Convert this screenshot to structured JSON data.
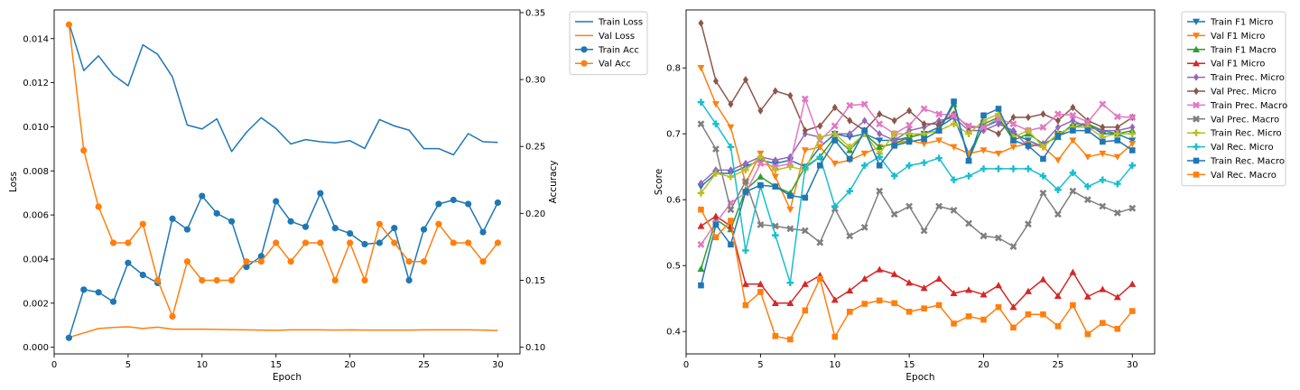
{
  "chart_data": [
    {
      "type": "line",
      "title": "",
      "xlabel": "Epoch",
      "ylabel": "Loss",
      "y2label": "Accuracy",
      "xlim": [
        0,
        31.5
      ],
      "ylim": [
        -0.0003,
        0.0153
      ],
      "y2lim": [
        0.095,
        0.352
      ],
      "xticks": [
        "0",
        "5",
        "10",
        "15",
        "20",
        "25",
        "30"
      ],
      "yticks": [
        "0.000",
        "0.002",
        "0.004",
        "0.006",
        "0.008",
        "0.010",
        "0.012",
        "0.014"
      ],
      "y2ticks": [
        "0.10",
        "0.15",
        "0.20",
        "0.25",
        "0.30",
        "0.35"
      ],
      "grid": false,
      "legend_position": "outside-top-right",
      "x": [
        1,
        2,
        3,
        4,
        5,
        6,
        7,
        8,
        9,
        10,
        11,
        12,
        13,
        14,
        15,
        16,
        17,
        18,
        19,
        20,
        21,
        22,
        23,
        24,
        25,
        26,
        27,
        28,
        29,
        30
      ],
      "series": [
        {
          "name": "Train Loss",
          "axis": "left",
          "marker": "none",
          "color": "#1f77b4",
          "values": [
            0.0147,
            0.01255,
            0.01322,
            0.01235,
            0.01186,
            0.01372,
            0.01328,
            0.01226,
            0.01008,
            0.0099,
            0.01036,
            0.00888,
            0.00975,
            0.01041,
            0.00992,
            0.00922,
            0.00942,
            0.00932,
            0.00927,
            0.00937,
            0.00902,
            0.01033,
            0.01004,
            0.00985,
            0.00901,
            0.00901,
            0.00873,
            0.00969,
            0.00932,
            0.00929
          ]
        },
        {
          "name": "Val Loss",
          "axis": "left",
          "marker": "none",
          "color": "#ff7f0e",
          "values": [
            0.00045,
            0.00065,
            0.00085,
            0.0009,
            0.00093,
            0.00085,
            0.00091,
            0.00082,
            0.00082,
            0.00082,
            0.00081,
            0.0008,
            0.00079,
            0.00078,
            0.00077,
            0.00079,
            0.00079,
            0.00079,
            0.00078,
            0.00079,
            0.00078,
            0.00078,
            0.00078,
            0.00078,
            0.00079,
            0.00079,
            0.00079,
            0.00079,
            0.00078,
            0.00076
          ]
        },
        {
          "name": "Train Acc",
          "axis": "right",
          "marker": "circle",
          "color": "#1f77b4",
          "values": [
            0.107,
            0.143,
            0.141,
            0.134,
            0.163,
            0.154,
            0.148,
            0.196,
            0.188,
            0.213,
            0.2,
            0.194,
            0.16,
            0.168,
            0.209,
            0.194,
            0.19,
            0.215,
            0.189,
            0.185,
            0.177,
            0.178,
            0.189,
            0.15,
            0.188,
            0.207,
            0.21,
            0.207,
            0.186,
            0.208
          ]
        },
        {
          "name": "Val Acc",
          "axis": "right",
          "marker": "circle",
          "color": "#ff7f0e",
          "values": [
            0.341,
            0.247,
            0.205,
            0.178,
            0.178,
            0.192,
            0.15,
            0.123,
            0.164,
            0.15,
            0.15,
            0.15,
            0.164,
            0.164,
            0.178,
            0.164,
            0.178,
            0.178,
            0.15,
            0.178,
            0.15,
            0.192,
            0.178,
            0.164,
            0.164,
            0.192,
            0.178,
            0.178,
            0.164,
            0.178
          ]
        }
      ]
    },
    {
      "type": "line",
      "title": "",
      "xlabel": "Epoch",
      "ylabel": "Score",
      "xlim": [
        0,
        31.5
      ],
      "ylim": [
        0.366,
        0.888
      ],
      "xticks": [
        "0",
        "5",
        "10",
        "15",
        "20",
        "25",
        "30"
      ],
      "yticks": [
        "0.4",
        "0.5",
        "0.6",
        "0.7",
        "0.8"
      ],
      "grid": false,
      "legend_position": "outside-top-right",
      "x": [
        1,
        2,
        3,
        4,
        5,
        6,
        7,
        8,
        9,
        10,
        11,
        12,
        13,
        14,
        15,
        16,
        17,
        18,
        19,
        20,
        21,
        22,
        23,
        24,
        25,
        26,
        27,
        28,
        29,
        30
      ],
      "series": [
        {
          "name": "Train F1 Micro",
          "marker": "triangle-down",
          "color": "#1f77b4",
          "values": [
            0.62,
            0.64,
            0.64,
            0.65,
            0.66,
            0.655,
            0.66,
            0.65,
            0.68,
            0.7,
            0.695,
            0.7,
            0.69,
            0.69,
            0.695,
            0.7,
            0.71,
            0.725,
            0.67,
            0.71,
            0.72,
            0.7,
            0.69,
            0.68,
            0.7,
            0.71,
            0.715,
            0.7,
            0.7,
            0.69
          ]
        },
        {
          "name": "Val F1 Micro",
          "marker": "triangle-down",
          "color": "#ff7f0e",
          "values": [
            0.8,
            0.745,
            0.71,
            0.625,
            0.67,
            0.635,
            0.585,
            0.675,
            0.68,
            0.655,
            0.66,
            0.67,
            0.68,
            0.685,
            0.69,
            0.685,
            0.69,
            0.68,
            0.67,
            0.675,
            0.67,
            0.68,
            0.685,
            0.68,
            0.66,
            0.69,
            0.665,
            0.67,
            0.665,
            0.685
          ]
        },
        {
          "name": "Train F1 Macro",
          "marker": "triangle-up",
          "color": "#2ca02c",
          "values": [
            0.495,
            0.57,
            0.555,
            0.615,
            0.635,
            0.62,
            0.61,
            0.65,
            0.665,
            0.695,
            0.675,
            0.7,
            0.68,
            0.685,
            0.695,
            0.7,
            0.705,
            0.745,
            0.66,
            0.715,
            0.725,
            0.69,
            0.7,
            0.685,
            0.695,
            0.715,
            0.715,
            0.705,
            0.7,
            0.705
          ]
        },
        {
          "name": "Val F1 Micro",
          "marker": "triangle-up",
          "color": "#d62728",
          "values": [
            0.56,
            0.575,
            0.56,
            0.472,
            0.472,
            0.443,
            0.443,
            0.472,
            0.485,
            0.448,
            0.462,
            0.48,
            0.494,
            0.487,
            0.474,
            0.466,
            0.48,
            0.458,
            0.463,
            0.456,
            0.47,
            0.437,
            0.461,
            0.479,
            0.454,
            0.49,
            0.453,
            0.464,
            0.452,
            0.472
          ]
        },
        {
          "name": "Train Prec. Micro",
          "marker": "diamond",
          "color": "#9467bd",
          "values": [
            0.625,
            0.645,
            0.645,
            0.655,
            0.665,
            0.66,
            0.665,
            0.7,
            0.695,
            0.7,
            0.7,
            0.72,
            0.7,
            0.69,
            0.705,
            0.71,
            0.72,
            0.725,
            0.705,
            0.705,
            0.715,
            0.705,
            0.68,
            0.685,
            0.71,
            0.72,
            0.71,
            0.705,
            0.705,
            0.71
          ]
        },
        {
          "name": "Val Prec. Micro",
          "marker": "diamond",
          "color": "#8c564b",
          "values": [
            0.868,
            0.78,
            0.745,
            0.782,
            0.735,
            0.765,
            0.758,
            0.705,
            0.712,
            0.74,
            0.72,
            0.705,
            0.73,
            0.72,
            0.735,
            0.715,
            0.715,
            0.73,
            0.71,
            0.71,
            0.7,
            0.725,
            0.725,
            0.73,
            0.72,
            0.74,
            0.72,
            0.71,
            0.71,
            0.725
          ]
        },
        {
          "name": "Train Prec. Macro",
          "marker": "x",
          "color": "#e377c2",
          "values": [
            0.532,
            0.565,
            0.595,
            0.61,
            0.655,
            0.65,
            0.655,
            0.753,
            0.69,
            0.712,
            0.743,
            0.745,
            0.715,
            0.7,
            0.713,
            0.738,
            0.73,
            0.728,
            0.712,
            0.71,
            0.723,
            0.715,
            0.705,
            0.71,
            0.73,
            0.728,
            0.718,
            0.745,
            0.726,
            0.725
          ]
        },
        {
          "name": "Val Prec. Macro",
          "marker": "x",
          "color": "#7f7f7f",
          "values": [
            0.715,
            0.677,
            0.585,
            0.628,
            0.562,
            0.56,
            0.556,
            0.553,
            0.535,
            0.586,
            0.545,
            0.558,
            0.613,
            0.578,
            0.59,
            0.553,
            0.59,
            0.584,
            0.564,
            0.545,
            0.542,
            0.529,
            0.563,
            0.61,
            0.578,
            0.613,
            0.6,
            0.59,
            0.58,
            0.587
          ]
        },
        {
          "name": "Train Rec. Micro",
          "marker": "plus",
          "color": "#bcbd22",
          "values": [
            0.61,
            0.64,
            0.635,
            0.645,
            0.665,
            0.645,
            0.65,
            0.645,
            0.695,
            0.7,
            0.68,
            0.7,
            0.67,
            0.7,
            0.7,
            0.7,
            0.705,
            0.715,
            0.7,
            0.72,
            0.73,
            0.695,
            0.705,
            0.68,
            0.7,
            0.71,
            0.71,
            0.695,
            0.7,
            0.7
          ]
        },
        {
          "name": "Val Rec. Micro",
          "marker": "plus",
          "color": "#17becf",
          "values": [
            0.748,
            0.715,
            0.68,
            0.523,
            0.62,
            0.546,
            0.474,
            0.648,
            0.665,
            0.59,
            0.613,
            0.652,
            0.665,
            0.636,
            0.652,
            0.656,
            0.663,
            0.63,
            0.636,
            0.647,
            0.647,
            0.647,
            0.647,
            0.636,
            0.615,
            0.641,
            0.62,
            0.63,
            0.624,
            0.652
          ]
        },
        {
          "name": "Train Rec. Macro",
          "marker": "square",
          "color": "#1f77b4",
          "values": [
            0.47,
            0.562,
            0.532,
            0.612,
            0.622,
            0.62,
            0.606,
            0.603,
            0.652,
            0.69,
            0.662,
            0.705,
            0.652,
            0.682,
            0.688,
            0.692,
            0.705,
            0.749,
            0.659,
            0.728,
            0.738,
            0.69,
            0.682,
            0.662,
            0.697,
            0.705,
            0.705,
            0.688,
            0.69,
            0.675
          ]
        },
        {
          "name": "Val Rec. Macro",
          "marker": "square",
          "color": "#ff7f0e",
          "values": [
            0.585,
            0.543,
            0.568,
            0.44,
            0.46,
            0.393,
            0.388,
            0.432,
            0.48,
            0.392,
            0.43,
            0.442,
            0.447,
            0.443,
            0.43,
            0.435,
            0.44,
            0.412,
            0.423,
            0.418,
            0.437,
            0.406,
            0.426,
            0.426,
            0.408,
            0.44,
            0.396,
            0.413,
            0.404,
            0.431
          ]
        }
      ]
    }
  ]
}
